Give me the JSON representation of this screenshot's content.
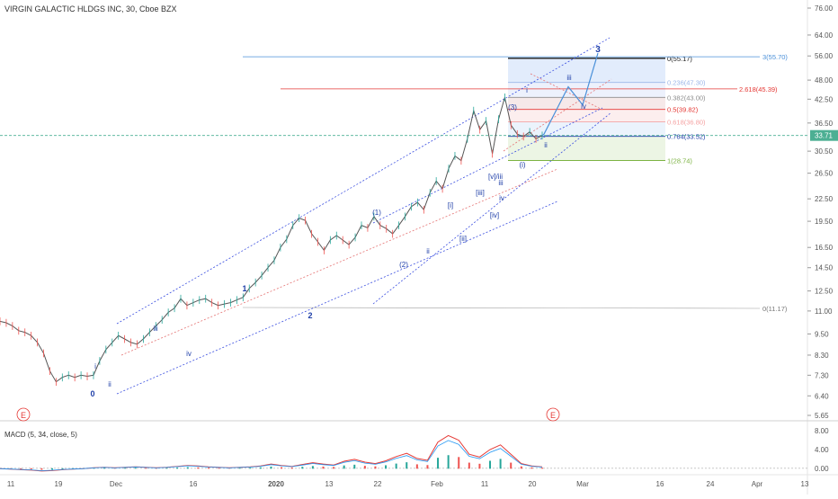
{
  "header": {
    "title": "VIRGIN GALACTIC HLDGS INC, 30, Cboe BZX"
  },
  "colors": {
    "price": "#555555",
    "wave": "#1f3fa8",
    "channel": "#3b4fe0",
    "median": "#e57373",
    "fib_blue": "#4a90d9",
    "fib_green": "#7cb342",
    "fib_red": "#e53935",
    "last_price_bg": "#4caf93",
    "macd_up": "#26a69a",
    "macd_down": "#ef5350",
    "earnings": "#e53935"
  },
  "price_axis": {
    "scale": "log",
    "range": [
      5.3,
      80
    ],
    "ticks": [
      "76.00",
      "64.00",
      "56.00",
      "48.00",
      "42.50",
      "36.50",
      "30.50",
      "26.50",
      "22.50",
      "19.50",
      "16.50",
      "14.50",
      "12.50",
      "11.00",
      "9.50",
      "8.30",
      "7.30",
      "6.40",
      "5.65"
    ],
    "last_price": "33.71"
  },
  "time_axis": {
    "labels": [
      "11",
      "19",
      "Dec",
      "16",
      "2020",
      "13",
      "22",
      "Feb",
      "11",
      "20",
      "Mar",
      "16",
      "24",
      "Apr",
      "13"
    ],
    "bold": [
      "2020"
    ]
  },
  "macd": {
    "label": "MACD (5, 34, close, 5)",
    "ticks": [
      "8.00",
      "4.00",
      "0.00"
    ]
  },
  "wave_labels": {
    "primary": [
      "0",
      "1",
      "2",
      "3"
    ],
    "intermediate": [
      "(1)",
      "(2)",
      "(3)",
      "(i)"
    ],
    "minor": [
      "i",
      "ii",
      "iii",
      "iv",
      "ii",
      "i",
      "ii",
      "iii",
      "iv",
      "iii",
      "iv",
      "[i]",
      "[ii]",
      "[iii]",
      "[iv]",
      "[v]/iii"
    ]
  },
  "earnings": [
    "E",
    "E"
  ],
  "chart_data": {
    "type": "line",
    "title": "VIRGIN GALACTIC HLDGS INC, 30, Cboe BZX",
    "xlabel": "",
    "ylabel": "",
    "ylim": [
      5.3,
      80
    ],
    "series": [
      {
        "values": [
          10.3,
          10.2,
          10.0,
          9.7,
          9.6,
          9.4,
          9.0,
          8.4,
          7.5,
          7.0,
          7.2,
          7.3,
          7.2,
          7.3,
          7.25,
          7.3,
          8.0,
          8.6,
          9.0,
          9.4,
          9.2,
          9.0,
          8.9,
          9.2,
          9.6,
          10.0,
          10.4,
          10.9,
          11.2,
          11.9,
          11.4,
          11.6,
          11.8,
          11.9,
          11.6,
          11.4,
          11.5,
          11.6,
          11.8,
          12.0,
          12.7,
          13.2,
          13.8,
          14.5,
          15.2,
          16.5,
          17.4,
          19.0,
          19.9,
          19.6,
          18.0,
          17.1,
          16.2,
          17.3,
          17.8,
          17.3,
          16.8,
          17.6,
          19.0,
          18.7,
          20.1,
          19.0,
          18.6,
          18.0,
          19.0,
          20.1,
          21.4,
          22.0,
          21.0,
          23.4,
          25.2,
          24.0,
          27.3,
          29.6,
          28.7,
          33.0,
          39.5,
          35.0,
          37.0,
          30.0,
          37.4,
          43.0,
          36.0,
          34.0,
          33.5,
          34.5,
          33.0,
          33.71
        ]
      }
    ],
    "fibonacci": [
      {
        "level": "0",
        "value": 55.17
      },
      {
        "level": "0.236",
        "value": 47.3
      },
      {
        "level": "0.382",
        "value": 43.0
      },
      {
        "level": "0.5",
        "value": 39.82
      },
      {
        "level": "0.618",
        "value": 36.8
      },
      {
        "level": "0.764",
        "value": 33.52
      },
      {
        "level": "1",
        "value": 28.74
      }
    ],
    "fib_ext_blue": {
      "level": "3",
      "value": 55.7
    },
    "fib_ext_red": {
      "level": "2.618",
      "value": 45.39
    },
    "support_level": {
      "level": "0",
      "value": 11.17
    },
    "fib_labels": [
      "0(55.17)",
      "0.236(47.30)",
      "0.382(43.00)",
      "0.5(39.82)",
      "0.618(36.80)",
      "0.764(33.52)",
      "1(28.74)",
      "3(55.70)",
      "2.618(45.39)",
      "0(11.17)"
    ],
    "projection": [
      {
        "label": "ii",
        "value": 34.0
      },
      {
        "label": "iii",
        "value": 46.0
      },
      {
        "label": "iv",
        "value": 41.0
      },
      {
        "label": "3",
        "value": 57.0
      }
    ],
    "macd_values": [
      -0.1,
      -0.2,
      -0.3,
      -0.4,
      -0.6,
      -0.5,
      -0.3,
      -0.2,
      -0.1,
      0.1,
      0.2,
      0.1,
      0.2,
      0.3,
      0.2,
      0.1,
      0.2,
      0.4,
      0.6,
      0.5,
      0.3,
      0.2,
      0.1,
      0.2,
      0.3,
      0.5,
      0.9,
      0.6,
      0.4,
      0.8,
      1.2,
      0.9,
      0.7,
      1.5,
      1.9,
      1.3,
      1.0,
      1.6,
      2.5,
      3.2,
      2.1,
      1.7,
      5.6,
      7.0,
      6.0,
      3.0,
      2.4,
      4.0,
      5.0,
      3.0,
      1.0,
      0.5,
      0.3
    ],
    "macd_range": [
      -1,
      9
    ]
  }
}
